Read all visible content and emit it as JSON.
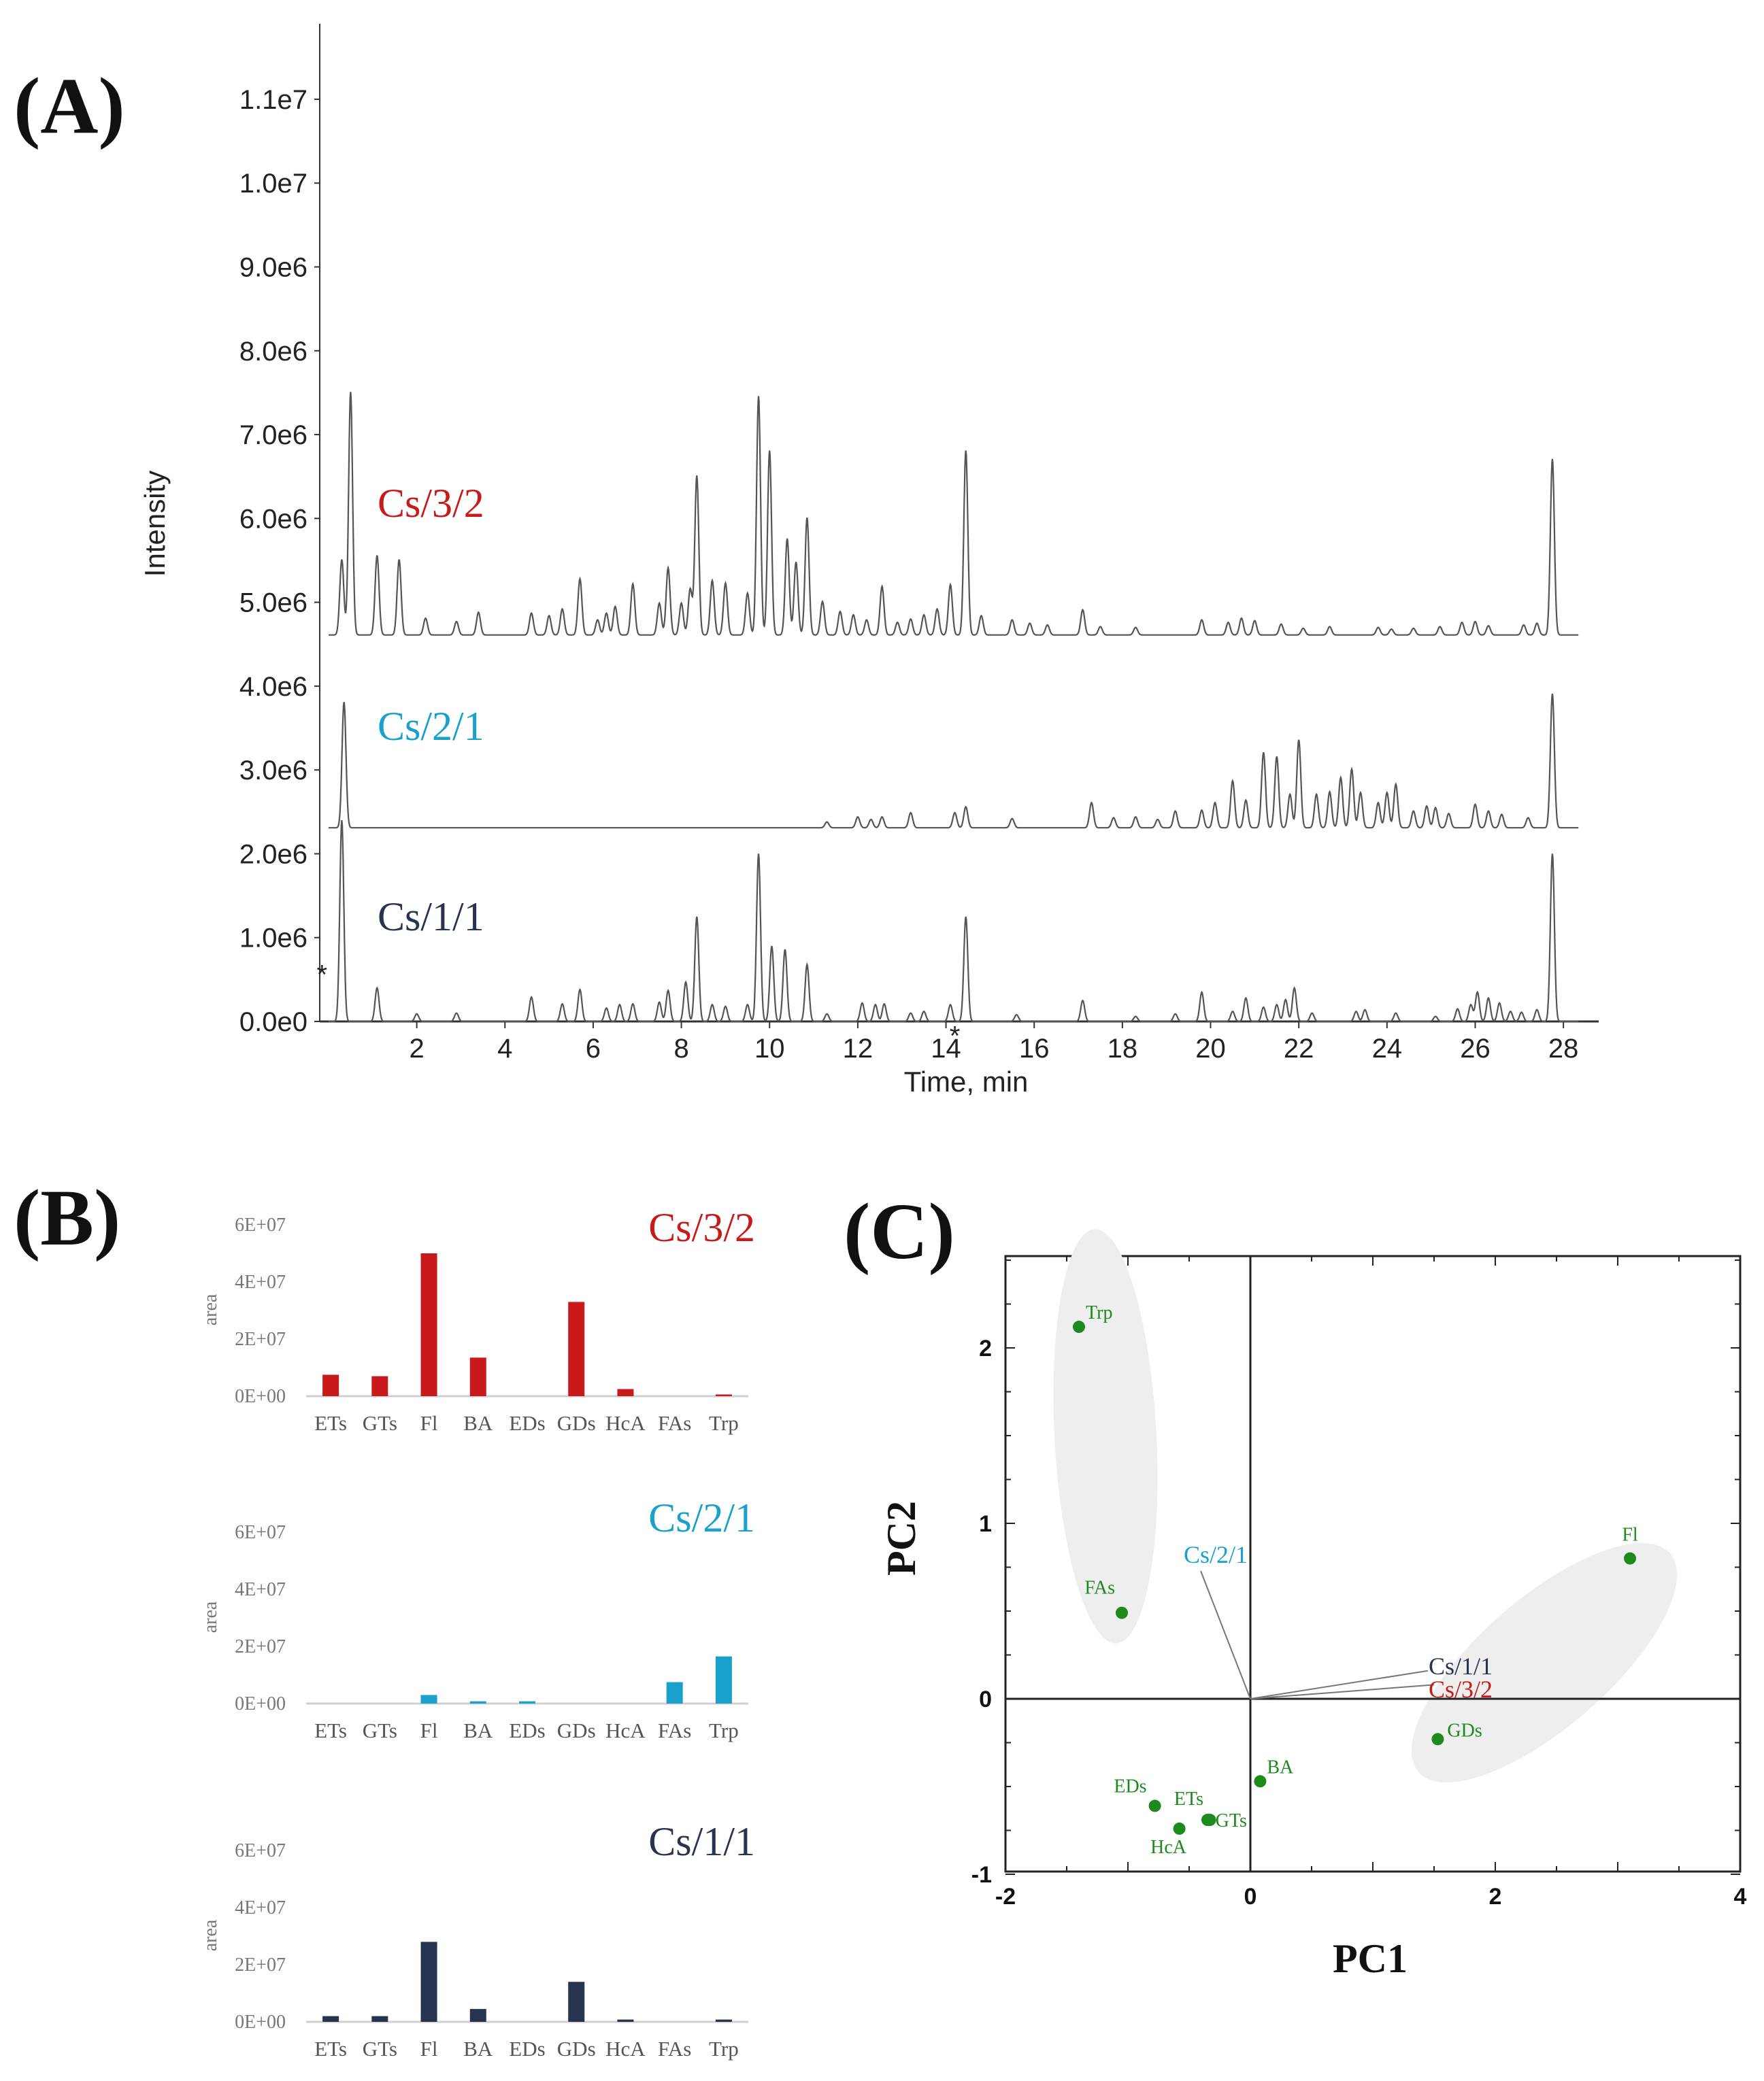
{
  "colors": {
    "red": "#c81a1a",
    "blue": "#1aa0cc",
    "navy": "#26344f",
    "trace": "#555555",
    "green": "#1c8a1c",
    "ellipse": "#eeeeee"
  },
  "panel_labels": {
    "a": "(A)",
    "b": "(B)",
    "c": "(C)"
  },
  "chart_data": [
    {
      "id": "A",
      "type": "line",
      "title": "(A)",
      "xlabel": "Time, min",
      "ylabel": "Intensity",
      "xlim": [
        -0.2,
        28.8
      ],
      "ylim": [
        0,
        11900000
      ],
      "x_ticks": [
        2,
        4,
        6,
        8,
        10,
        12,
        14,
        16,
        18,
        20,
        22,
        24,
        26,
        28
      ],
      "x_tick_labels": [
        "2",
        "4",
        "6",
        "8",
        "10",
        "12",
        "14",
        "16",
        "18",
        "20",
        "22",
        "24",
        "26",
        "28"
      ],
      "y_ticks": [
        0,
        1000000,
        2000000,
        3000000,
        4000000,
        5000000,
        6000000,
        7000000,
        8000000,
        9000000,
        10000000,
        11000000
      ],
      "y_tick_labels": [
        "0.0e0",
        "1.0e6",
        "2.0e6",
        "3.0e6",
        "4.0e6",
        "5.0e6",
        "6.0e6",
        "7.0e6",
        "8.0e6",
        "9.0e6",
        "1.0e7",
        "1.1e7"
      ],
      "markers": [
        {
          "label": "*",
          "x": -0.15,
          "y": 580000
        },
        {
          "label": "*",
          "x": 14.2,
          "y": -150000
        }
      ],
      "series": [
        {
          "name": "Cs/3/2",
          "color_key": "red",
          "baseline": 4610000,
          "peaks": [
            [
              0.3,
              900000
            ],
            [
              0.5,
              2900000
            ],
            [
              1.1,
              950000
            ],
            [
              1.6,
              900000
            ],
            [
              2.2,
              200000
            ],
            [
              2.9,
              160000
            ],
            [
              3.4,
              270000
            ],
            [
              4.6,
              260000
            ],
            [
              5.0,
              230000
            ],
            [
              5.3,
              310000
            ],
            [
              5.7,
              670000
            ],
            [
              6.1,
              180000
            ],
            [
              6.3,
              260000
            ],
            [
              6.5,
              340000
            ],
            [
              6.9,
              610000
            ],
            [
              7.5,
              380000
            ],
            [
              7.7,
              800000
            ],
            [
              8.0,
              380000
            ],
            [
              8.2,
              550000
            ],
            [
              8.35,
              1900000
            ],
            [
              8.7,
              650000
            ],
            [
              9.0,
              620000
            ],
            [
              9.5,
              500000
            ],
            [
              9.75,
              2850000
            ],
            [
              10.0,
              2200000
            ],
            [
              10.4,
              1150000
            ],
            [
              10.6,
              870000
            ],
            [
              10.85,
              1400000
            ],
            [
              11.2,
              400000
            ],
            [
              11.6,
              280000
            ],
            [
              11.9,
              240000
            ],
            [
              12.2,
              180000
            ],
            [
              12.55,
              580000
            ],
            [
              12.9,
              150000
            ],
            [
              13.2,
              190000
            ],
            [
              13.5,
              240000
            ],
            [
              13.8,
              310000
            ],
            [
              14.1,
              600000
            ],
            [
              14.45,
              2200000
            ],
            [
              14.8,
              230000
            ],
            [
              15.5,
              180000
            ],
            [
              15.9,
              140000
            ],
            [
              16.3,
              120000
            ],
            [
              17.1,
              300000
            ],
            [
              17.5,
              100000
            ],
            [
              18.3,
              90000
            ],
            [
              19.8,
              180000
            ],
            [
              20.4,
              150000
            ],
            [
              20.7,
              200000
            ],
            [
              21.0,
              170000
            ],
            [
              21.6,
              130000
            ],
            [
              22.1,
              80000
            ],
            [
              22.7,
              100000
            ],
            [
              23.8,
              90000
            ],
            [
              24.1,
              70000
            ],
            [
              24.6,
              80000
            ],
            [
              25.2,
              100000
            ],
            [
              25.7,
              150000
            ],
            [
              26.0,
              160000
            ],
            [
              26.3,
              110000
            ],
            [
              27.1,
              120000
            ],
            [
              27.4,
              140000
            ],
            [
              27.75,
              2100000
            ]
          ]
        },
        {
          "name": "Cs/2/1",
          "color_key": "blue",
          "baseline": 2310000,
          "peaks": [
            [
              0.35,
              1500000
            ],
            [
              11.3,
              70000
            ],
            [
              12.0,
              130000
            ],
            [
              12.3,
              100000
            ],
            [
              12.55,
              130000
            ],
            [
              13.2,
              180000
            ],
            [
              14.2,
              180000
            ],
            [
              14.45,
              250000
            ],
            [
              15.5,
              110000
            ],
            [
              17.3,
              300000
            ],
            [
              17.8,
              120000
            ],
            [
              18.3,
              130000
            ],
            [
              18.8,
              100000
            ],
            [
              19.2,
              200000
            ],
            [
              19.8,
              210000
            ],
            [
              20.1,
              300000
            ],
            [
              20.5,
              560000
            ],
            [
              20.8,
              330000
            ],
            [
              21.2,
              900000
            ],
            [
              21.5,
              850000
            ],
            [
              21.8,
              400000
            ],
            [
              22.0,
              1050000
            ],
            [
              22.4,
              400000
            ],
            [
              22.7,
              430000
            ],
            [
              22.95,
              600000
            ],
            [
              23.2,
              700000
            ],
            [
              23.4,
              420000
            ],
            [
              23.8,
              300000
            ],
            [
              24.0,
              420000
            ],
            [
              24.2,
              520000
            ],
            [
              24.6,
              200000
            ],
            [
              24.9,
              260000
            ],
            [
              25.1,
              240000
            ],
            [
              25.4,
              170000
            ],
            [
              26.0,
              280000
            ],
            [
              26.3,
              200000
            ],
            [
              26.6,
              160000
            ],
            [
              27.2,
              120000
            ],
            [
              27.75,
              1600000
            ]
          ]
        },
        {
          "name": "Cs/1/1",
          "color_key": "navy",
          "baseline": 0,
          "peaks": [
            [
              0.3,
              2400000
            ],
            [
              1.1,
              400000
            ],
            [
              2.0,
              90000
            ],
            [
              2.9,
              100000
            ],
            [
              4.6,
              290000
            ],
            [
              5.3,
              210000
            ],
            [
              5.7,
              380000
            ],
            [
              6.3,
              160000
            ],
            [
              6.6,
              200000
            ],
            [
              6.9,
              210000
            ],
            [
              7.5,
              230000
            ],
            [
              7.7,
              370000
            ],
            [
              8.1,
              470000
            ],
            [
              8.35,
              1250000
            ],
            [
              8.7,
              200000
            ],
            [
              9.0,
              180000
            ],
            [
              9.5,
              200000
            ],
            [
              9.75,
              2000000
            ],
            [
              10.05,
              900000
            ],
            [
              10.35,
              860000
            ],
            [
              10.85,
              680000
            ],
            [
              11.3,
              90000
            ],
            [
              12.1,
              220000
            ],
            [
              12.4,
              200000
            ],
            [
              12.6,
              210000
            ],
            [
              13.2,
              100000
            ],
            [
              13.5,
              120000
            ],
            [
              14.1,
              200000
            ],
            [
              14.45,
              1250000
            ],
            [
              15.6,
              80000
            ],
            [
              17.1,
              250000
            ],
            [
              18.3,
              60000
            ],
            [
              19.2,
              90000
            ],
            [
              19.8,
              350000
            ],
            [
              20.5,
              120000
            ],
            [
              20.8,
              280000
            ],
            [
              21.2,
              170000
            ],
            [
              21.5,
              200000
            ],
            [
              21.7,
              260000
            ],
            [
              21.9,
              400000
            ],
            [
              22.3,
              100000
            ],
            [
              23.3,
              120000
            ],
            [
              23.5,
              140000
            ],
            [
              24.2,
              100000
            ],
            [
              25.1,
              60000
            ],
            [
              25.6,
              150000
            ],
            [
              25.9,
              200000
            ],
            [
              26.05,
              350000
            ],
            [
              26.3,
              280000
            ],
            [
              26.55,
              220000
            ],
            [
              26.8,
              120000
            ],
            [
              27.05,
              110000
            ],
            [
              27.4,
              140000
            ],
            [
              27.75,
              2000000
            ]
          ]
        }
      ]
    },
    {
      "id": "B",
      "type": "bar",
      "title": "(B)",
      "ylabel": "area",
      "categories": [
        "ETs",
        "GTs",
        "Fl",
        "BA",
        "EDs",
        "GDs",
        "HcA",
        "FAs",
        "Trp"
      ],
      "ylim": [
        0,
        60000000
      ],
      "y_ticks": [
        0,
        20000000,
        40000000,
        60000000
      ],
      "y_tick_labels": [
        "0E+00",
        "2E+07",
        "4E+07",
        "6E+07"
      ],
      "series": [
        {
          "name": "Cs/3/2",
          "color_key": "red",
          "values": [
            7500000,
            7000000,
            50000000,
            13500000,
            0,
            33000000,
            2500000,
            0,
            600000
          ]
        },
        {
          "name": "Cs/2/1",
          "color_key": "blue",
          "values": [
            0,
            0,
            3000000,
            800000,
            800000,
            0,
            0,
            7500000,
            16500000
          ]
        },
        {
          "name": "Cs/1/1",
          "color_key": "navy",
          "values": [
            2000000,
            2000000,
            28000000,
            4500000,
            0,
            14000000,
            800000,
            0,
            800000
          ]
        }
      ]
    },
    {
      "id": "C",
      "type": "scatter",
      "title": "(C)",
      "xlabel": "PC1",
      "ylabel": "PC2",
      "xlim": [
        -2,
        4
      ],
      "ylim": [
        -1,
        2.5
      ],
      "x_ticks": [
        -2,
        0,
        2,
        4
      ],
      "x_tick_labels": [
        "-2",
        "0",
        "2",
        "4"
      ],
      "y_ticks": [
        -1,
        0,
        1,
        2
      ],
      "y_tick_labels": [
        "-1",
        "0",
        "1",
        "2"
      ],
      "points": [
        {
          "label": "Trp",
          "x": -1.4,
          "y": 2.12
        },
        {
          "label": "FAs",
          "x": -1.05,
          "y": 0.49
        },
        {
          "label": "Fl",
          "x": 3.1,
          "y": 0.8
        },
        {
          "label": "GDs",
          "x": 1.53,
          "y": -0.23
        },
        {
          "label": "BA",
          "x": 0.08,
          "y": -0.47
        },
        {
          "label": "EDs",
          "x": -0.78,
          "y": -0.61
        },
        {
          "label": "ETs",
          "x": -0.35,
          "y": -0.69
        },
        {
          "label": "GTs",
          "x": -0.33,
          "y": -0.69
        },
        {
          "label": "HcA",
          "x": -0.58,
          "y": -0.74
        }
      ],
      "vectors": [
        {
          "label": "Cs/2/1",
          "color_key": "blue",
          "x": -0.45,
          "y": 0.7
        },
        {
          "label": "Cs/1/1",
          "color_key": "navy",
          "x": 1.45,
          "y": 0.16
        },
        {
          "label": "Cs/3/2",
          "color_key": "red",
          "x": 1.5,
          "y": 0.08
        }
      ],
      "groups": [
        {
          "name": "upper-left",
          "members": [
            "Trp",
            "FAs"
          ]
        },
        {
          "name": "right",
          "members": [
            "Fl",
            "GDs"
          ]
        }
      ]
    }
  ]
}
